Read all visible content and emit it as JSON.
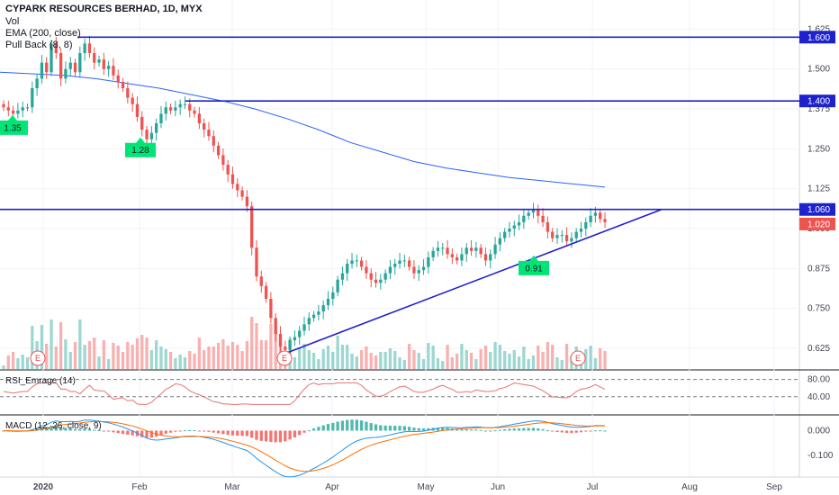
{
  "header": {
    "title": "CYPARK RESOURCES BERHAD, 1D, MYX",
    "vol_label": "Vol",
    "ema_label": "EMA (200, close)",
    "pullback_label": "Pull Back (8, 8)"
  },
  "colors": {
    "up": "#26a69a",
    "down": "#ef5350",
    "ema": "#2962ff",
    "level": "#1e22cc",
    "trend": "#1e22cc",
    "macd": "#2196f3",
    "signal": "#ff6d00",
    "rsi": "#e57373",
    "pullback": "#00e676"
  },
  "chart_data": {
    "type": "candlestick",
    "title": "CYPARK RESOURCES BERHAD, 1D, MYX",
    "price_axis": {
      "ticks": [
        "1.625",
        "1.500",
        "1.375",
        "1.250",
        "1.125",
        "1.000",
        "0.875",
        "0.750",
        "0.625"
      ],
      "range": [
        0.56,
        1.66
      ]
    },
    "time_axis": {
      "ticks": [
        {
          "label": "2020",
          "bold": true
        },
        {
          "label": "Feb",
          "bold": false
        },
        {
          "label": "Mar",
          "bold": false
        },
        {
          "label": "Apr",
          "bold": false
        },
        {
          "label": "May",
          "bold": false
        },
        {
          "label": "Jun",
          "bold": false
        },
        {
          "label": "Jul",
          "bold": false
        },
        {
          "label": "Aug",
          "bold": false
        },
        {
          "label": "Sep",
          "bold": false
        }
      ]
    },
    "horizontal_levels": [
      {
        "label": "1.600",
        "value": 1.6
      },
      {
        "label": "1.400",
        "value": 1.4
      },
      {
        "label": "1.060",
        "value": 1.06
      }
    ],
    "last_price": {
      "label": "1.020",
      "value": 1.02
    },
    "pullback_labels": [
      {
        "text": "1.35",
        "value": 1.35,
        "direction": "up"
      },
      {
        "text": "1.28",
        "value": 1.28,
        "direction": "up"
      },
      {
        "text": "0.91",
        "value": 0.91,
        "direction": "up"
      }
    ],
    "earnings_markers": [
      "E",
      "E",
      "E"
    ],
    "closes": [
      1.38,
      1.37,
      1.36,
      1.37,
      1.38,
      1.38,
      1.44,
      1.47,
      1.52,
      1.49,
      1.58,
      1.55,
      1.47,
      1.5,
      1.52,
      1.49,
      1.55,
      1.58,
      1.55,
      1.52,
      1.53,
      1.5,
      1.51,
      1.48,
      1.46,
      1.44,
      1.41,
      1.39,
      1.35,
      1.31,
      1.28,
      1.3,
      1.33,
      1.36,
      1.38,
      1.37,
      1.38,
      1.39,
      1.39,
      1.37,
      1.36,
      1.33,
      1.31,
      1.29,
      1.26,
      1.23,
      1.2,
      1.17,
      1.14,
      1.12,
      1.1,
      1.07,
      0.94,
      0.85,
      0.82,
      0.78,
      0.72,
      0.67,
      0.63,
      0.62,
      0.65,
      0.66,
      0.68,
      0.7,
      0.72,
      0.73,
      0.74,
      0.76,
      0.78,
      0.8,
      0.84,
      0.86,
      0.89,
      0.9,
      0.9,
      0.88,
      0.86,
      0.84,
      0.83,
      0.84,
      0.86,
      0.88,
      0.89,
      0.9,
      0.9,
      0.88,
      0.86,
      0.87,
      0.88,
      0.91,
      0.93,
      0.94,
      0.94,
      0.92,
      0.91,
      0.9,
      0.92,
      0.94,
      0.93,
      0.94,
      0.92,
      0.9,
      0.92,
      0.95,
      0.97,
      0.99,
      1.0,
      1.01,
      1.02,
      1.04,
      1.05,
      1.06,
      1.04,
      1.02,
      0.99,
      0.97,
      0.98,
      0.98,
      0.96,
      0.97,
      0.99,
      1.0,
      1.02,
      1.04,
      1.05,
      1.03,
      1.02
    ],
    "ema200": [
      1.49,
      1.485,
      1.48,
      1.47,
      1.455,
      1.44,
      1.42,
      1.4,
      1.375,
      1.345,
      1.31,
      1.27,
      1.24,
      1.21,
      1.19,
      1.175,
      1.16,
      1.15,
      1.14,
      1.13
    ],
    "rsi": {
      "label": "RSI_Emrage (14)",
      "ticks": [
        "80.00",
        "40.00"
      ],
      "range": [
        0,
        100
      ]
    },
    "macd": {
      "label": "MACD (12, 26, close, 9)",
      "ticks": [
        "0.000",
        "-0.100"
      ],
      "range": [
        -0.18,
        0.06
      ]
    }
  }
}
